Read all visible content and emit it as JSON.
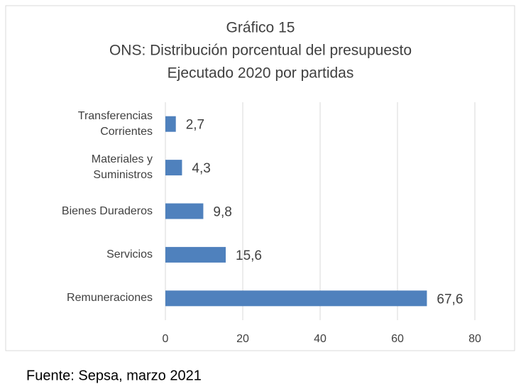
{
  "chart_data": {
    "type": "bar",
    "orientation": "horizontal",
    "title": [
      "Gráfico 15",
      "ONS: Distribución porcentual del presupuesto",
      "Ejecutado 2020 por partidas"
    ],
    "categories": [
      "Transferencias\nCorrientes",
      "Materiales y\nSuministros",
      "Bienes Duraderos",
      "Servicios",
      "Remuneraciones"
    ],
    "values": [
      2.7,
      4.3,
      9.8,
      15.6,
      67.6
    ],
    "value_labels": [
      "2,7",
      "4,3",
      "9,8",
      "15,6",
      "67,6"
    ],
    "color": "#4f81bd",
    "xlim": [
      0,
      80
    ],
    "xticks": [
      0,
      20,
      40,
      60,
      80
    ],
    "grid": true,
    "source": "Fuente: Sepsa, marzo 2021"
  }
}
